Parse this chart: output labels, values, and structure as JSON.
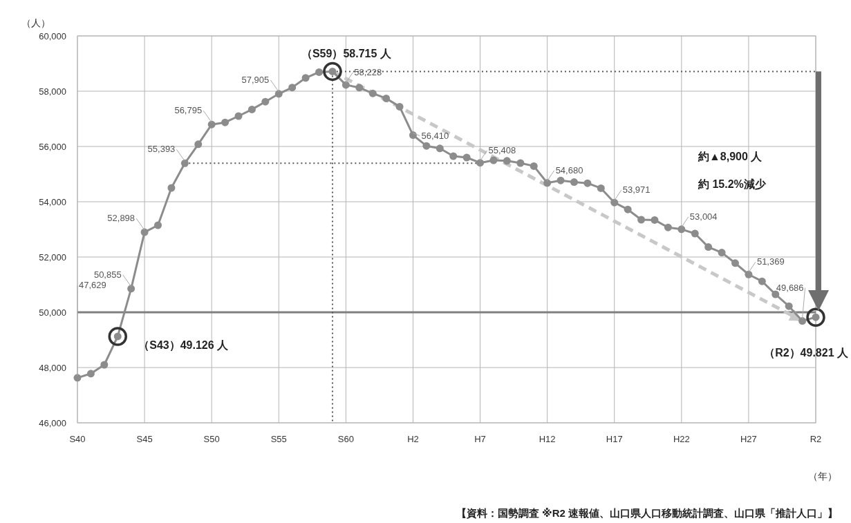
{
  "chart_data": {
    "type": "line",
    "xlabel": "（年）",
    "ylabel": "（人）",
    "categories": [
      "S40",
      null,
      null,
      null,
      null,
      "S45",
      null,
      null,
      null,
      null,
      "S50",
      null,
      null,
      null,
      null,
      "S55",
      null,
      null,
      null,
      null,
      "S60",
      null,
      null,
      null,
      null,
      "H2",
      null,
      null,
      null,
      null,
      "H7",
      null,
      null,
      null,
      null,
      "H12",
      null,
      null,
      null,
      null,
      "H17",
      null,
      null,
      null,
      null,
      "H22",
      null,
      null,
      null,
      null,
      "H27",
      null,
      null,
      null,
      null,
      "R2"
    ],
    "ylim": [
      46000,
      60000
    ],
    "yticks": [
      {
        "value": 46000,
        "label": "46,000"
      },
      {
        "value": 48000,
        "label": "48,000"
      },
      {
        "value": 50000,
        "label": "50,000"
      },
      {
        "value": 52000,
        "label": "52,000"
      },
      {
        "value": 54000,
        "label": "54,000"
      },
      {
        "value": 56000,
        "label": "56,000"
      },
      {
        "value": 58000,
        "label": "58,000"
      },
      {
        "value": 60000,
        "label": "60,000"
      }
    ],
    "grid": true,
    "marker": "circle",
    "series": [
      {
        "color": "#8c8c8c",
        "line_style": "solid",
        "values": [
          47629,
          47780,
          48100,
          49126,
          50855,
          52898,
          53150,
          54500,
          55393,
          56080,
          56795,
          56870,
          57100,
          57340,
          57620,
          57905,
          58134,
          58481,
          58690,
          58715,
          58228,
          58130,
          57920,
          57740,
          57440,
          56410,
          56020,
          55930,
          55650,
          55600,
          55408,
          55500,
          55480,
          55400,
          55290,
          54680,
          54770,
          54710,
          54670,
          54490,
          53971,
          53720,
          53350,
          53340,
          53070,
          53004,
          52850,
          52360,
          52160,
          51780,
          51369,
          51120,
          50650,
          50220,
          49686,
          49821
        ],
        "value_labels": [
          "47,629",
          null,
          null,
          null,
          "50,855",
          "52,898",
          null,
          null,
          "55,393",
          null,
          "56,795",
          null,
          null,
          null,
          null,
          "57,905",
          null,
          null,
          null,
          null,
          "58,228",
          null,
          null,
          null,
          null,
          "56,410",
          null,
          null,
          null,
          null,
          "55,408",
          null,
          null,
          null,
          null,
          "54,680",
          null,
          null,
          null,
          null,
          "53,971",
          null,
          null,
          null,
          null,
          "53,004",
          null,
          null,
          null,
          null,
          "51,369",
          null,
          null,
          null,
          "49,686",
          null
        ]
      },
      {
        "type": "line",
        "color": "#c8c8c8",
        "line_style": "dashed",
        "values": [
          null,
          null,
          null,
          null,
          null,
          null,
          null,
          null,
          null,
          null,
          null,
          null,
          null,
          null,
          null,
          null,
          null,
          null,
          null,
          58715,
          null,
          null,
          null,
          null,
          null,
          null,
          null,
          null,
          null,
          null,
          null,
          null,
          null,
          null,
          null,
          null,
          null,
          null,
          null,
          null,
          null,
          null,
          null,
          null,
          null,
          null,
          null,
          null,
          null,
          null,
          null,
          null,
          null,
          null,
          49686,
          null
        ]
      }
    ],
    "ref_lines": [
      {
        "axis": "y",
        "value": 50000,
        "color": "#7f7f7f",
        "line_style": "solid"
      },
      {
        "axis": "y",
        "value": 58715,
        "color": "#555555",
        "line_style": "dotted"
      },
      {
        "axis": "y",
        "value": 55393,
        "color": "#555555",
        "line_style": "dotted"
      }
    ],
    "annotations": [
      {
        "text": "（S59）58.715 人",
        "y": 58715
      },
      "（S43）49.126 人",
      {
        "text": "（R2）49.821 人",
        "y": 49821
      },
      "約▲8,900 人",
      "約 15.2%減少",
      "【資料：国勢調査 ※R2 速報値、山口県人口移動統計調査、山口県「推計人口」】"
    ]
  }
}
